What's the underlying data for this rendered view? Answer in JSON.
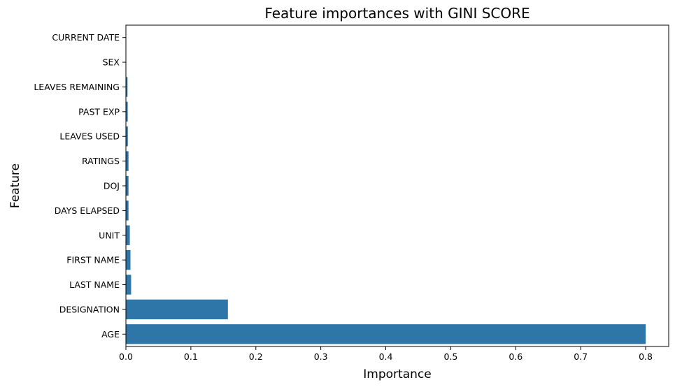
{
  "chart_data": {
    "type": "bar",
    "orientation": "horizontal",
    "title": "Feature importances with GINI SCORE",
    "xlabel": "Importance",
    "ylabel": "Feature",
    "categories": [
      "CURRENT DATE",
      "SEX",
      "LEAVES REMAINING",
      "PAST EXP",
      "LEAVES USED",
      "RATINGS",
      "DOJ",
      "DAYS ELAPSED",
      "UNIT",
      "FIRST NAME",
      "LAST NAME",
      "DESIGNATION",
      "AGE"
    ],
    "values": [
      0.0,
      0.0005,
      0.0025,
      0.0028,
      0.003,
      0.004,
      0.004,
      0.004,
      0.006,
      0.007,
      0.008,
      0.157,
      0.8
    ],
    "xlim": [
      0.0,
      0.8355
    ],
    "xticks": [
      "0.0",
      "0.1",
      "0.2",
      "0.3",
      "0.4",
      "0.5",
      "0.6",
      "0.7",
      "0.8"
    ],
    "xtick_values": [
      0.0,
      0.1,
      0.2,
      0.3,
      0.4,
      0.5,
      0.6,
      0.7,
      0.8
    ],
    "grid": false,
    "legend": "none",
    "bar_color": "#2e75a8"
  }
}
